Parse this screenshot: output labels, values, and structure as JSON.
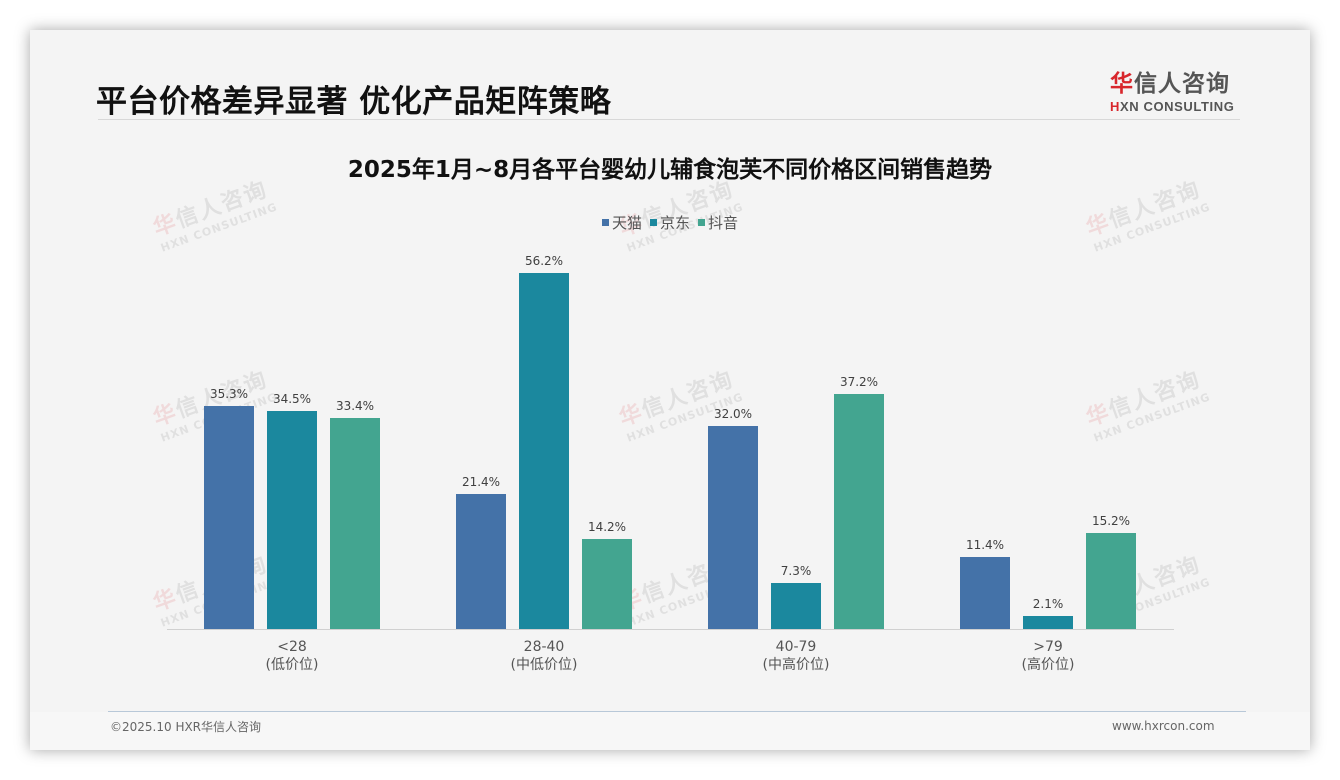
{
  "header": {
    "title": "平台价格差异显著 优化产品矩阵策略",
    "logo": {
      "hua": "华",
      "rest": "信人咨询",
      "en_h": "H",
      "en_rest": "XN CONSULTING"
    }
  },
  "watermark": {
    "hua": "华",
    "rest": "信人咨询",
    "en": "HXN CONSULTING"
  },
  "footer": {
    "left": "©2025.10 HXR华信人咨询",
    "right": "www.hxrcon.com"
  },
  "chart_data": {
    "type": "bar",
    "title": "2025年1月~8月各平台婴幼儿辅食泡芙不同价格区间销售趋势",
    "xlabel": "",
    "ylabel": "",
    "ylim": [
      0,
      60
    ],
    "grid": false,
    "legend_position": "top",
    "categories": [
      "<28\n(低价位)",
      "28-40\n(中低价位)",
      "40-79\n(中高价位)",
      ">79\n(高价位)"
    ],
    "category_labels": [
      {
        "range": "<28",
        "tier": "(低价位)"
      },
      {
        "range": "28-40",
        "tier": "(中低价位)"
      },
      {
        "range": "40-79",
        "tier": "(中高价位)"
      },
      {
        "range": ">79",
        "tier": "(高价位)"
      }
    ],
    "series": [
      {
        "name": "天猫",
        "color": "#4472a8",
        "values": [
          35.3,
          21.4,
          32.0,
          11.4
        ],
        "labels": [
          "35.3%",
          "21.4%",
          "32.0%",
          "11.4%"
        ]
      },
      {
        "name": "京东",
        "color": "#1b889e",
        "values": [
          34.5,
          56.2,
          7.3,
          2.1
        ],
        "labels": [
          "34.5%",
          "56.2%",
          "7.3%",
          "2.1%"
        ]
      },
      {
        "name": "抖音",
        "color": "#43a590",
        "values": [
          33.4,
          14.2,
          37.2,
          15.2
        ],
        "labels": [
          "33.4%",
          "14.2%",
          "37.2%",
          "15.2%"
        ]
      }
    ]
  }
}
